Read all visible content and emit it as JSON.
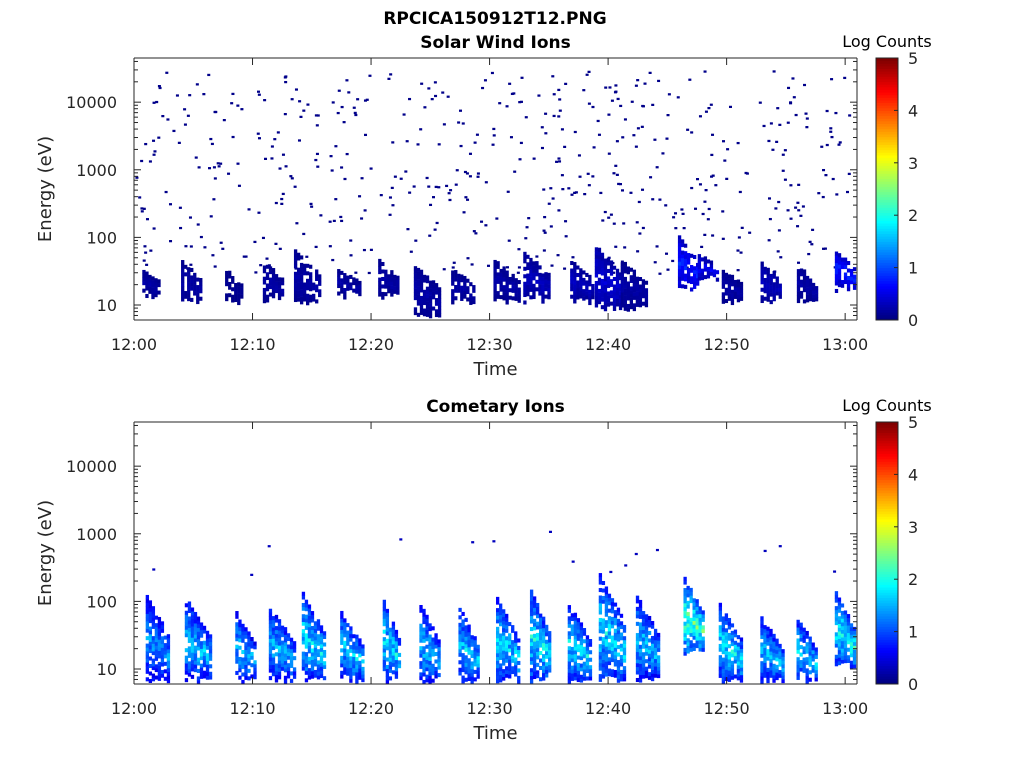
{
  "figure_title": "RPCICA150912T12.PNG",
  "chart_data": [
    {
      "type": "heatmap",
      "title": "Solar Wind Ions",
      "xlabel": "Time",
      "ylabel": "Energy (eV)",
      "y_scale": "log",
      "ylim": [
        6,
        45000
      ],
      "x_ticks": [
        "12:00",
        "12:10",
        "12:20",
        "12:30",
        "12:40",
        "12:50",
        "13:00"
      ],
      "y_ticks": [
        "10",
        "100",
        "1000",
        "10000"
      ],
      "colorbar": {
        "label": "Log Counts",
        "min": 0,
        "max": 5,
        "ticks": [
          "0",
          "1",
          "2",
          "3",
          "4",
          "5"
        ],
        "colormap": "jet"
      },
      "bursts": [
        {
          "t": 1.5,
          "emin": 12,
          "emax": 30,
          "level": 0.2
        },
        {
          "t": 4.8,
          "emin": 10,
          "emax": 40,
          "level": 0.2
        },
        {
          "t": 8.5,
          "emin": 10,
          "emax": 30,
          "level": 0.1
        },
        {
          "t": 11.8,
          "emin": 10,
          "emax": 40,
          "level": 0.2
        },
        {
          "t": 14.6,
          "emin": 10,
          "emax": 55,
          "level": 0.2
        },
        {
          "t": 18.2,
          "emin": 12,
          "emax": 30,
          "level": 0.2
        },
        {
          "t": 21.5,
          "emin": 12,
          "emax": 40,
          "level": 0.2
        },
        {
          "t": 24.8,
          "emin": 6,
          "emax": 35,
          "level": 0.2
        },
        {
          "t": 27.8,
          "emin": 10,
          "emax": 30,
          "level": 0.2
        },
        {
          "t": 31.5,
          "emin": 10,
          "emax": 40,
          "level": 0.2
        },
        {
          "t": 34.0,
          "emin": 10,
          "emax": 55,
          "level": 0.3
        },
        {
          "t": 37.8,
          "emin": 10,
          "emax": 40,
          "level": 0.3
        },
        {
          "t": 40.0,
          "emin": 8,
          "emax": 70,
          "level": 0.4
        },
        {
          "t": 42.2,
          "emin": 8,
          "emax": 40,
          "level": 0.2
        },
        {
          "t": 46.8,
          "emin": 15,
          "emax": 90,
          "level": 0.8
        },
        {
          "t": 48.5,
          "emin": 20,
          "emax": 50,
          "level": 0.6
        },
        {
          "t": 50.5,
          "emin": 10,
          "emax": 30,
          "level": 0.2
        },
        {
          "t": 53.8,
          "emin": 10,
          "emax": 40,
          "level": 0.3
        },
        {
          "t": 56.8,
          "emin": 10,
          "emax": 35,
          "level": 0.2
        },
        {
          "t": 60.0,
          "emin": 15,
          "emax": 60,
          "level": 0.8
        }
      ],
      "scatter": {
        "emin": 30,
        "emax": 30000,
        "density": 0.35,
        "level": 0.05
      }
    },
    {
      "type": "heatmap",
      "title": "Cometary Ions",
      "xlabel": "Time",
      "ylabel": "Energy (eV)",
      "y_scale": "log",
      "ylim": [
        6,
        45000
      ],
      "x_ticks": [
        "12:00",
        "12:10",
        "12:20",
        "12:30",
        "12:40",
        "12:50",
        "13:00"
      ],
      "y_ticks": [
        "10",
        "100",
        "1000",
        "10000"
      ],
      "colorbar": {
        "label": "Log Counts",
        "min": 0,
        "max": 5,
        "ticks": [
          "0",
          "1",
          "2",
          "3",
          "4",
          "5"
        ],
        "colormap": "jet"
      },
      "bursts": [
        {
          "t": 2.0,
          "emin": 6,
          "emax": 110,
          "level": 1.4
        },
        {
          "t": 5.4,
          "emin": 6,
          "emax": 100,
          "level": 1.6
        },
        {
          "t": 9.4,
          "emin": 6,
          "emax": 60,
          "level": 1.6
        },
        {
          "t": 12.5,
          "emin": 6,
          "emax": 70,
          "level": 1.6
        },
        {
          "t": 15.2,
          "emin": 6,
          "emax": 120,
          "level": 1.8
        },
        {
          "t": 18.4,
          "emin": 6,
          "emax": 60,
          "level": 1.7
        },
        {
          "t": 21.8,
          "emin": 6,
          "emax": 90,
          "level": 1.8
        },
        {
          "t": 25.0,
          "emin": 6,
          "emax": 80,
          "level": 1.6
        },
        {
          "t": 28.2,
          "emin": 6,
          "emax": 70,
          "level": 1.7
        },
        {
          "t": 31.5,
          "emin": 6,
          "emax": 100,
          "level": 1.7
        },
        {
          "t": 34.3,
          "emin": 6,
          "emax": 130,
          "level": 1.9
        },
        {
          "t": 37.6,
          "emin": 6,
          "emax": 80,
          "level": 1.8
        },
        {
          "t": 40.3,
          "emin": 6,
          "emax": 230,
          "level": 1.8
        },
        {
          "t": 43.3,
          "emin": 6,
          "emax": 110,
          "level": 1.6
        },
        {
          "t": 47.2,
          "emin": 15,
          "emax": 200,
          "level": 2.3
        },
        {
          "t": 50.3,
          "emin": 6,
          "emax": 80,
          "level": 1.8
        },
        {
          "t": 53.8,
          "emin": 6,
          "emax": 50,
          "level": 1.6
        },
        {
          "t": 56.8,
          "emin": 6,
          "emax": 50,
          "level": 1.7
        },
        {
          "t": 60.0,
          "emin": 10,
          "emax": 120,
          "level": 2.0
        }
      ],
      "scatter": {
        "emin": 150,
        "emax": 1500,
        "density": 0.01,
        "level": 0.3
      }
    }
  ]
}
